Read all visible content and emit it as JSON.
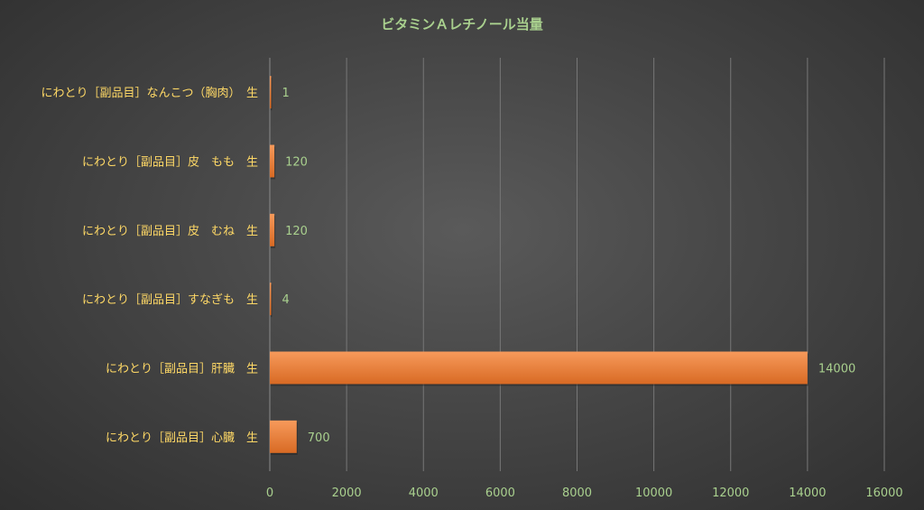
{
  "chart_data": {
    "type": "bar",
    "orientation": "horizontal",
    "title": "ビタミンＡレチノール当量",
    "categories": [
      "にわとり［副品目］なんこつ（胸肉）　生",
      "にわとり［副品目］皮　もも　生",
      "にわとり［副品目］皮　むね　生",
      "にわとり［副品目］すなぎも　生",
      "にわとり［副品目］肝臓　生",
      "にわとり［副品目］心臓　生"
    ],
    "values": [
      1,
      120,
      120,
      4,
      14000,
      700
    ],
    "value_labels": [
      "1",
      "120",
      "120",
      "4",
      "14000",
      "700"
    ],
    "xlim": [
      0,
      16000
    ],
    "xticks": [
      "0",
      "2000",
      "4000",
      "6000",
      "8000",
      "10000",
      "12000",
      "14000",
      "16000"
    ],
    "grid": true,
    "legend": "none",
    "colors": {
      "bar": "#ed7d31",
      "category_label": "#ffd966",
      "value_label": "#a9d08e",
      "title": "#a9d08e",
      "grid": "#777777"
    }
  }
}
